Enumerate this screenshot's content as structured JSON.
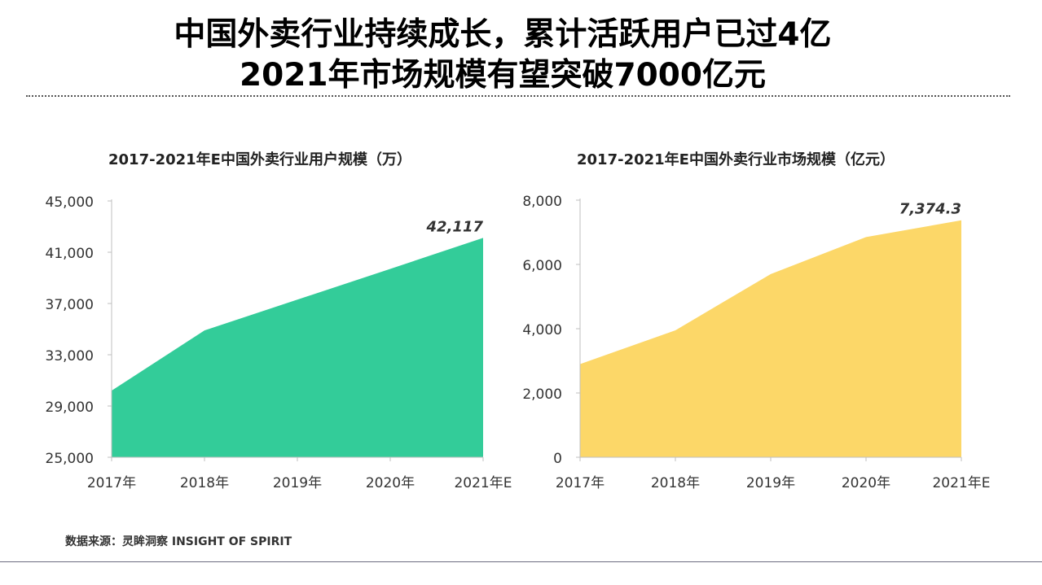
{
  "title": {
    "line1": "中国外卖行业持续成长，累计活跃用户已过4亿",
    "line2": "2021年市场规模有望突破7000亿元"
  },
  "colors": {
    "users_fill": "#33CC99",
    "market_fill": "#FCD768",
    "axis": "#bfbfbf",
    "text": "#222222"
  },
  "chart_data": [
    {
      "type": "area",
      "title": "2017-2021年E中国外卖行业用户规模（万）",
      "categories": [
        "2017年",
        "2018年",
        "2019年",
        "2020年",
        "2021年E"
      ],
      "values": [
        30200,
        34900,
        37300,
        39700,
        42117
      ],
      "ylim": [
        25000,
        45000
      ],
      "yticks": [
        25000,
        29000,
        33000,
        37000,
        41000,
        45000
      ],
      "ytick_labels": [
        "25,000",
        "29,000",
        "33,000",
        "37,000",
        "41,000",
        "45,000"
      ],
      "annotation": "42,117",
      "grid": false
    },
    {
      "type": "area",
      "title": "2017-2021年E中国外卖行业市场规模（亿元）",
      "categories": [
        "2017年",
        "2018年",
        "2019年",
        "2020年",
        "2021年E"
      ],
      "values": [
        2900,
        3950,
        5700,
        6850,
        7374.3
      ],
      "ylim": [
        0,
        8000
      ],
      "yticks": [
        0,
        2000,
        4000,
        6000,
        8000
      ],
      "ytick_labels": [
        "0",
        "2,000",
        "4,000",
        "6,000",
        "8,000"
      ],
      "annotation": "7,374.3",
      "grid": false
    }
  ],
  "source": "数据来源：灵眸洞察 INSIGHT OF SPIRIT"
}
